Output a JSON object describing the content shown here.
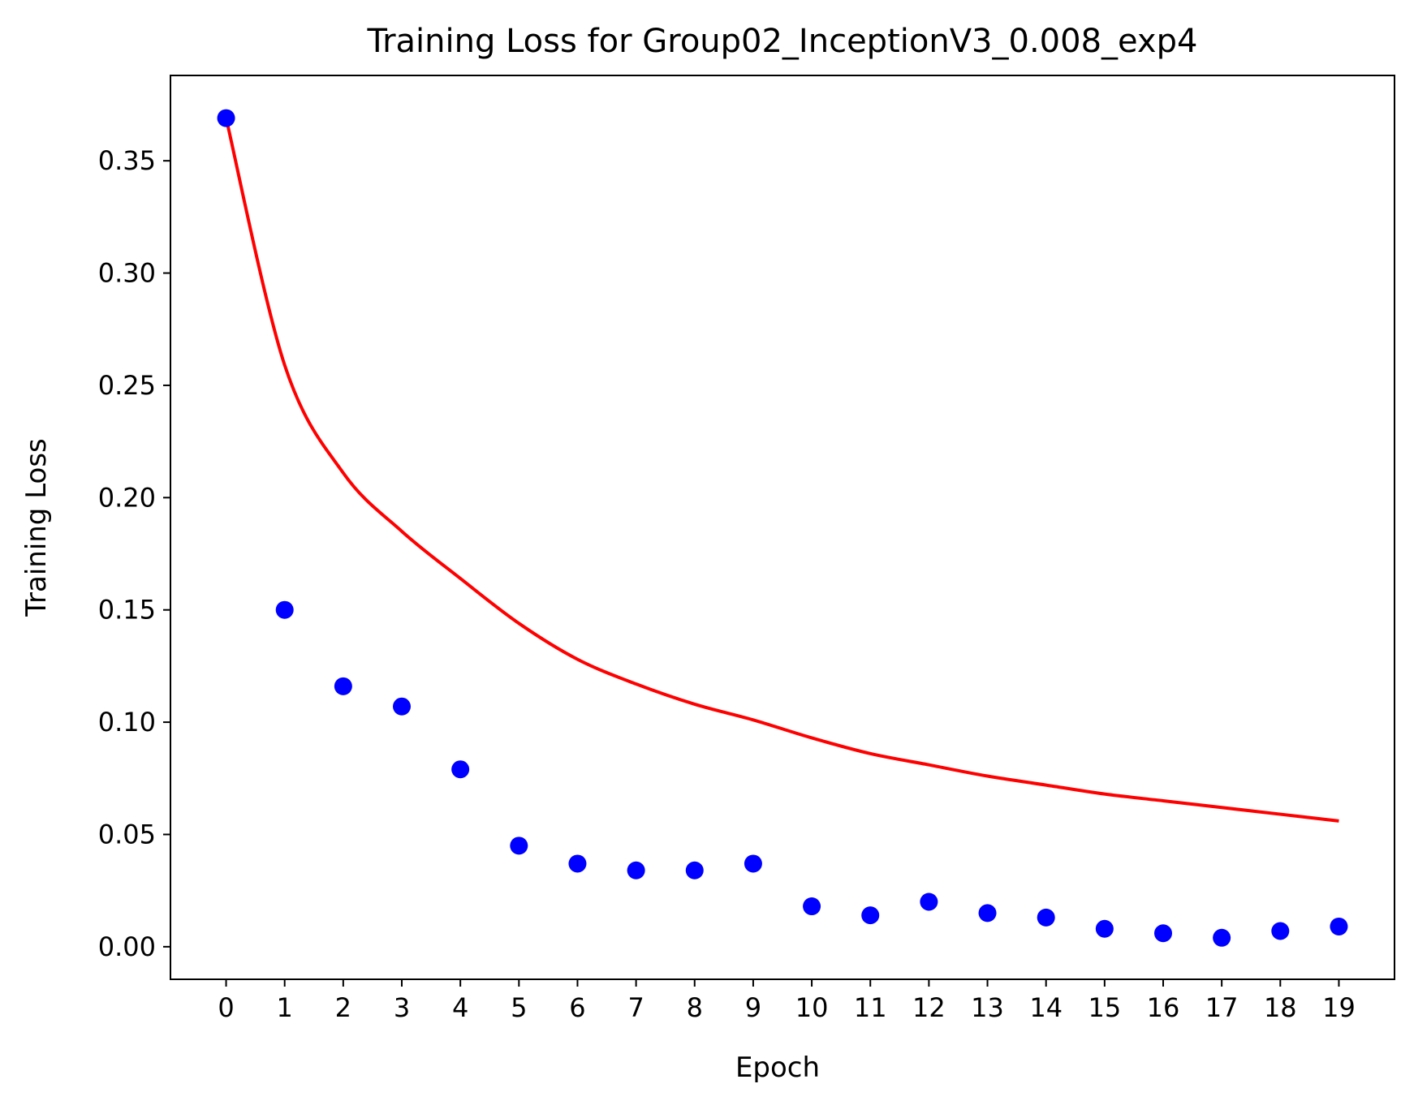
{
  "chart_data": {
    "type": "scatter",
    "title": "Training Loss for Group02_InceptionV3_0.008_exp4",
    "xlabel": "Epoch",
    "ylabel": "Training Loss",
    "x": [
      0,
      1,
      2,
      3,
      4,
      5,
      6,
      7,
      8,
      9,
      10,
      11,
      12,
      13,
      14,
      15,
      16,
      17,
      18,
      19
    ],
    "xticks": [
      "0",
      "1",
      "2",
      "3",
      "4",
      "5",
      "6",
      "7",
      "8",
      "9",
      "10",
      "11",
      "12",
      "13",
      "14",
      "15",
      "16",
      "17",
      "18",
      "19"
    ],
    "yticks": [
      "0.00",
      "0.05",
      "0.10",
      "0.15",
      "0.20",
      "0.25",
      "0.30",
      "0.35"
    ],
    "ytick_values": [
      0.0,
      0.05,
      0.1,
      0.15,
      0.2,
      0.25,
      0.3,
      0.35
    ],
    "xlim": [
      -0.95,
      19.95
    ],
    "ylim": [
      -0.0145,
      0.388
    ],
    "grid": false,
    "series": [
      {
        "kind": "scatter",
        "color": "#0000ff",
        "values": [
          0.369,
          0.15,
          0.116,
          0.107,
          0.079,
          0.045,
          0.037,
          0.034,
          0.034,
          0.037,
          0.018,
          0.014,
          0.02,
          0.015,
          0.013,
          0.008,
          0.006,
          0.004,
          0.007,
          0.009
        ]
      },
      {
        "kind": "line",
        "color": "#ff0000",
        "values": [
          0.369,
          0.259,
          0.211,
          0.185,
          0.164,
          0.144,
          0.128,
          0.117,
          0.108,
          0.101,
          0.093,
          0.086,
          0.081,
          0.076,
          0.072,
          0.068,
          0.065,
          0.062,
          0.059,
          0.056
        ]
      }
    ]
  }
}
